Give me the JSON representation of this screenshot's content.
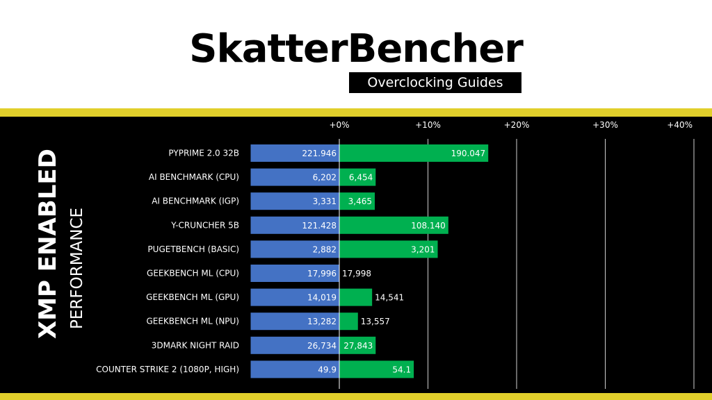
{
  "header": {
    "brand": "SkatterBencher",
    "tagline": "Overclocking Guides"
  },
  "side_title": {
    "main": "XMP ENABLED",
    "sub": "PERFORMANCE"
  },
  "colors": {
    "baseline": "#4472c4",
    "improved": "#00b050",
    "stripe": "#e1cf2b",
    "panel": "#000000",
    "text": "#ffffff"
  },
  "chart_data": {
    "type": "bar",
    "orientation": "horizontal",
    "xaxis_ticks": [
      "+0%",
      "+10%",
      "+20%",
      "+30%",
      "+40%"
    ],
    "xlim": [
      -10,
      40
    ],
    "grid": true,
    "categories": [
      {
        "name": "PYPRIME 2.0 32B",
        "baseline_label": "221.946",
        "improved_label": "190.047",
        "improvement_pct": 16.8
      },
      {
        "name": "AI BENCHMARK (CPU)",
        "baseline_label": "6,202",
        "improved_label": "6,454",
        "improvement_pct": 4.1
      },
      {
        "name": "AI BENCHMARK (IGP)",
        "baseline_label": "3,331",
        "improved_label": "3,465",
        "improvement_pct": 4.0
      },
      {
        "name": "Y-CRUNCHER 5B",
        "baseline_label": "121.428",
        "improved_label": "108.140",
        "improvement_pct": 12.3
      },
      {
        "name": "PUGETBENCH (BASIC)",
        "baseline_label": "2,882",
        "improved_label": "3,201",
        "improvement_pct": 11.1
      },
      {
        "name": "GEEKBENCH ML (CPU)",
        "baseline_label": "17,996",
        "improved_label": "17,998",
        "improvement_pct": 0.0
      },
      {
        "name": "GEEKBENCH ML (GPU)",
        "baseline_label": "14,019",
        "improved_label": "14,541",
        "improvement_pct": 3.7
      },
      {
        "name": "GEEKBENCH ML (NPU)",
        "baseline_label": "13,282",
        "improved_label": "13,557",
        "improvement_pct": 2.1
      },
      {
        "name": "3DMARK NIGHT RAID",
        "baseline_label": "26,734",
        "improved_label": "27,843",
        "improvement_pct": 4.1
      },
      {
        "name": "COUNTER STRIKE 2 (1080P, HIGH)",
        "baseline_label": "49.9",
        "improved_label": "54.1",
        "improvement_pct": 8.4
      }
    ]
  }
}
